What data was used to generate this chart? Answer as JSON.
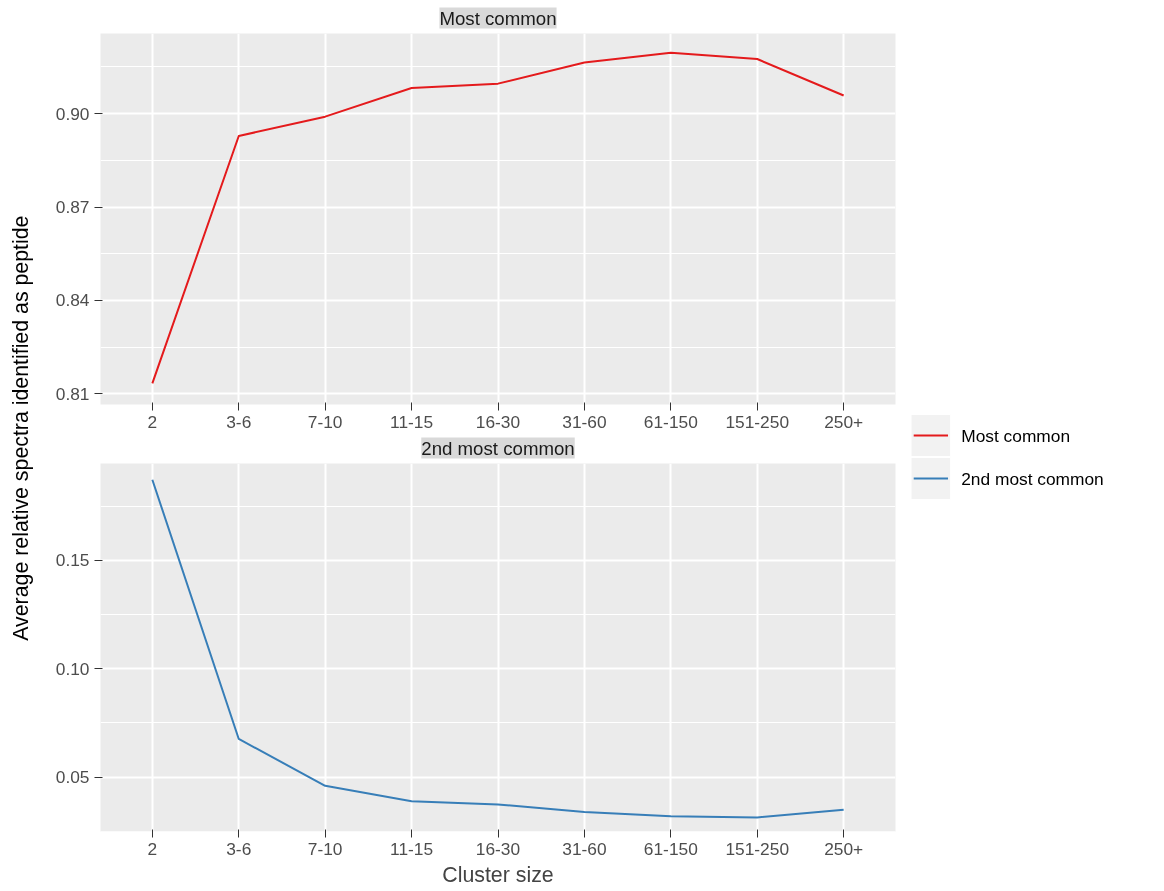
{
  "chart_data": [
    {
      "type": "line",
      "title": "Most common",
      "ylabel": "Average relative spectra identified as peptide",
      "categories": [
        "2",
        "3-6",
        "7-10",
        "11-15",
        "16-30",
        "31-60",
        "61-150",
        "151-250",
        "250+"
      ],
      "series": [
        {
          "name": "Most common",
          "color": "#e41a1c",
          "values": [
            0.8134,
            0.8928,
            0.899,
            0.9082,
            0.9096,
            0.9164,
            0.9195,
            0.9175,
            0.9058
          ]
        }
      ],
      "ylim": [
        0.8066,
        0.9257
      ],
      "yticks": [
        0.81,
        0.84,
        0.87,
        {
          "value": 0.9,
          "label": "0.90"
        }
      ],
      "grid": true,
      "legend": "right"
    },
    {
      "type": "line",
      "title": "2nd most common",
      "xlabel": "Cluster size",
      "categories": [
        "2",
        "3-6",
        "7-10",
        "11-15",
        "16-30",
        "31-60",
        "61-150",
        "151-250",
        "250+"
      ],
      "series": [
        {
          "name": "2nd most common",
          "color": "#377eb8",
          "values": [
            0.1872,
            0.0676,
            0.046,
            0.0389,
            0.0374,
            0.0339,
            0.0319,
            0.0314,
            0.0349
          ]
        }
      ],
      "ylim": [
        0.0249,
        0.1947
      ],
      "yticks": [
        0.05,
        {
          "value": 0.1,
          "label": "0.10"
        },
        0.15
      ],
      "grid": true,
      "legend": "right"
    }
  ]
}
